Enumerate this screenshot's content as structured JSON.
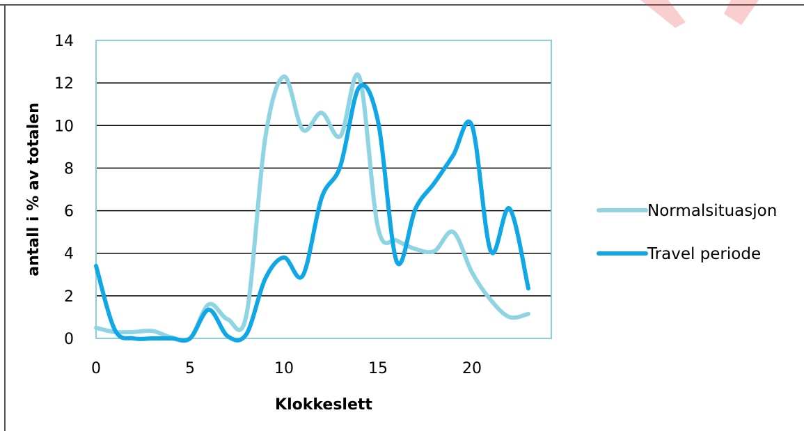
{
  "colors": {
    "normalsituasjon": "#8FD4E3",
    "travel_periode": "#0FA7E6",
    "grid": "#000000",
    "plot_border": "#8CCFE0",
    "frame": "#555555",
    "watermark": "#E33A3A"
  },
  "chart_data": {
    "type": "line",
    "xlabel": "Klokkeslett",
    "ylabel": "antall i % av totalen",
    "xlim": [
      0,
      24
    ],
    "ylim": [
      0,
      14
    ],
    "xticks": [
      0,
      5,
      10,
      15,
      20
    ],
    "yticks": [
      0,
      2,
      4,
      6,
      8,
      10,
      12,
      14
    ],
    "grid": "horizontal",
    "legend_position": "right",
    "series": [
      {
        "name": "Normalsituasjon",
        "x": [
          0,
          1,
          2,
          3,
          4,
          5,
          6,
          7,
          8,
          9,
          10,
          11,
          12,
          13,
          14,
          15,
          16,
          17,
          18,
          19,
          20,
          21,
          22,
          23
        ],
        "y": [
          0.5,
          0.3,
          0.3,
          0.35,
          0.05,
          0.0,
          1.6,
          0.9,
          1.1,
          9.4,
          12.3,
          9.8,
          10.6,
          9.5,
          12.3,
          5.2,
          4.6,
          4.2,
          4.1,
          5.0,
          3.1,
          1.8,
          1.0,
          1.15
        ]
      },
      {
        "name": "Travel periode",
        "x": [
          0,
          1,
          2,
          3,
          4,
          5,
          6,
          7,
          8,
          9,
          10,
          11,
          12,
          13,
          14,
          15,
          16,
          17,
          18,
          19,
          20,
          21,
          22,
          23
        ],
        "y": [
          3.4,
          0.4,
          0.0,
          0.0,
          0.0,
          0.0,
          1.35,
          0.1,
          0.2,
          2.8,
          3.8,
          2.95,
          6.6,
          8.1,
          11.8,
          10.2,
          3.6,
          6.1,
          7.3,
          8.6,
          10.0,
          4.1,
          6.1,
          2.35
        ]
      }
    ]
  }
}
